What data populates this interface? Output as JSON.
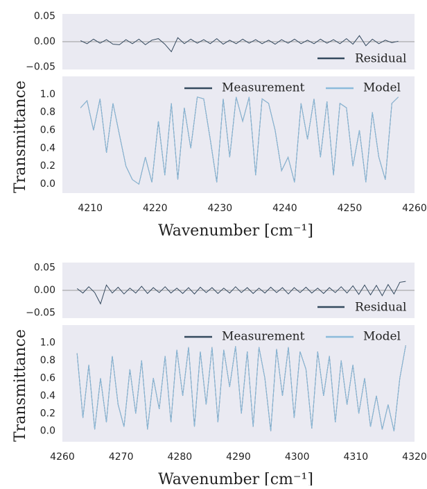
{
  "chart_data": [
    {
      "type": "line",
      "x": [
        4208.5,
        4209.5,
        4210.5,
        4211.5,
        4212.5,
        4213.5,
        4214.5,
        4215.5,
        4216.5,
        4217.5,
        4218.5,
        4219.5,
        4220.5,
        4221.5,
        4222.5,
        4223.5,
        4224.5,
        4225.5,
        4226.5,
        4227.5,
        4228.5,
        4229.5,
        4230.5,
        4231.5,
        4232.5,
        4233.5,
        4234.5,
        4235.5,
        4236.5,
        4237.5,
        4238.5,
        4239.5,
        4240.5,
        4241.5,
        4242.5,
        4243.5,
        4244.5,
        4245.5,
        4246.5,
        4247.5,
        4248.5,
        4249.5,
        4250.5,
        4251.5,
        4252.5,
        4253.5,
        4254.5,
        4255.5,
        4256.5,
        4257.5
      ],
      "series": [
        {
          "name": "Residual",
          "color": "#34495e",
          "values": [
            0.002,
            -0.004,
            0.005,
            -0.003,
            0.004,
            -0.005,
            -0.006,
            0.004,
            -0.004,
            0.005,
            -0.006,
            0.003,
            0.006,
            -0.005,
            -0.02,
            0.008,
            -0.004,
            0.005,
            -0.003,
            0.004,
            -0.004,
            0.006,
            -0.005,
            0.003,
            -0.004,
            0.005,
            -0.003,
            0.004,
            -0.004,
            0.003,
            -0.005,
            0.004,
            -0.003,
            0.005,
            -0.004,
            0.003,
            -0.004,
            0.005,
            -0.003,
            0.004,
            -0.004,
            0.006,
            -0.005,
            0.012,
            -0.008,
            0.005,
            -0.004,
            0.003,
            -0.002,
            0.001
          ]
        }
      ],
      "ylim": [
        -0.055,
        0.055
      ],
      "xlim": [
        4205.7,
        4260
      ],
      "yticks": [
        {
          "value": 0.05,
          "label": "0.05"
        },
        {
          "value": 0,
          "label": "0.00"
        },
        {
          "value": -0.05,
          "label": "−0.05"
        }
      ],
      "legend": "lower right"
    },
    {
      "type": "line",
      "x": [
        4208.5,
        4209.5,
        4210.5,
        4211.5,
        4212.5,
        4213.5,
        4214.5,
        4215.5,
        4216.5,
        4217.5,
        4218.5,
        4219.5,
        4220.5,
        4221.5,
        4222.5,
        4223.5,
        4224.5,
        4225.5,
        4226.5,
        4227.5,
        4228.5,
        4229.5,
        4230.5,
        4231.5,
        4232.5,
        4233.5,
        4234.5,
        4235.5,
        4236.5,
        4237.5,
        4238.5,
        4239.5,
        4240.5,
        4241.5,
        4242.5,
        4243.5,
        4244.5,
        4245.5,
        4246.5,
        4247.5,
        4248.5,
        4249.5,
        4250.5,
        4251.5,
        4252.5,
        4253.5,
        4254.5,
        4255.5,
        4256.5,
        4257.5
      ],
      "series": [
        {
          "name": "Measurement",
          "color": "#34495e",
          "values": [
            0.85,
            0.93,
            0.6,
            0.95,
            0.35,
            0.9,
            0.55,
            0.2,
            0.05,
            0.0,
            0.3,
            0.02,
            0.7,
            0.1,
            0.9,
            0.05,
            0.85,
            0.4,
            0.97,
            0.95,
            0.5,
            0.02,
            0.95,
            0.3,
            0.97,
            0.7,
            0.97,
            0.1,
            0.95,
            0.9,
            0.6,
            0.15,
            0.3,
            0.02,
            0.9,
            0.5,
            0.95,
            0.3,
            0.92,
            0.1,
            0.9,
            0.85,
            0.2,
            0.6,
            0.02,
            0.8,
            0.3,
            0.05,
            0.9,
            0.97
          ]
        },
        {
          "name": "Model",
          "color": "#8bbbdb",
          "values": [
            0.85,
            0.93,
            0.6,
            0.95,
            0.35,
            0.9,
            0.55,
            0.2,
            0.05,
            0.0,
            0.3,
            0.02,
            0.7,
            0.1,
            0.9,
            0.05,
            0.85,
            0.4,
            0.97,
            0.95,
            0.5,
            0.02,
            0.95,
            0.3,
            0.97,
            0.7,
            0.97,
            0.1,
            0.95,
            0.9,
            0.6,
            0.15,
            0.3,
            0.02,
            0.9,
            0.5,
            0.95,
            0.3,
            0.92,
            0.1,
            0.9,
            0.85,
            0.2,
            0.6,
            0.02,
            0.8,
            0.3,
            0.05,
            0.9,
            0.97
          ]
        }
      ],
      "ylim": [
        -0.1,
        1.2
      ],
      "xlim": [
        4205.7,
        4260
      ],
      "yticks": [
        {
          "value": 0,
          "label": "0.0"
        },
        0.2,
        0.4,
        0.6,
        0.8,
        {
          "value": 1,
          "label": "1.0"
        }
      ],
      "xticks": [
        4210,
        4220,
        4230,
        4240,
        4250,
        4260
      ],
      "ylabel": "Transmittance",
      "xlabel": "Wavenumber [cm⁻¹]",
      "legend": "upper"
    },
    {
      "type": "line",
      "x": [
        4262.5,
        4263.5,
        4264.5,
        4265.5,
        4266.5,
        4267.5,
        4268.5,
        4269.5,
        4270.5,
        4271.5,
        4272.5,
        4273.5,
        4274.5,
        4275.5,
        4276.5,
        4277.5,
        4278.5,
        4279.5,
        4280.5,
        4281.5,
        4282.5,
        4283.5,
        4284.5,
        4285.5,
        4286.5,
        4287.5,
        4288.5,
        4289.5,
        4290.5,
        4291.5,
        4292.5,
        4293.5,
        4294.5,
        4295.5,
        4296.5,
        4297.5,
        4298.5,
        4299.5,
        4300.5,
        4301.5,
        4302.5,
        4303.5,
        4304.5,
        4305.5,
        4306.5,
        4307.5,
        4308.5,
        4309.5,
        4310.5,
        4311.5,
        4312.5,
        4313.5,
        4314.5,
        4315.5,
        4316.5,
        4317.5,
        4318.5
      ],
      "series": [
        {
          "name": "Residual",
          "color": "#34495e",
          "values": [
            0.004,
            -0.006,
            0.008,
            -0.005,
            -0.03,
            0.012,
            -0.006,
            0.007,
            -0.008,
            0.005,
            -0.006,
            0.009,
            -0.007,
            0.006,
            -0.005,
            0.008,
            -0.006,
            0.005,
            -0.007,
            0.006,
            -0.008,
            0.007,
            -0.005,
            0.006,
            -0.007,
            0.005,
            -0.006,
            0.008,
            -0.005,
            0.006,
            -0.007,
            0.005,
            -0.006,
            0.007,
            -0.005,
            0.006,
            -0.008,
            0.006,
            -0.005,
            0.007,
            -0.006,
            0.005,
            -0.007,
            0.006,
            -0.005,
            0.008,
            -0.006,
            0.01,
            -0.009,
            0.012,
            -0.01,
            0.011,
            -0.012,
            0.013,
            -0.008,
            0.018,
            0.02
          ]
        }
      ],
      "ylim": [
        -0.062,
        0.062
      ],
      "xlim": [
        4260,
        4320
      ],
      "yticks": [
        {
          "value": 0.05,
          "label": "0.05"
        },
        {
          "value": 0,
          "label": "0.00"
        },
        {
          "value": -0.05,
          "label": "−0.05"
        }
      ],
      "legend": "lower right"
    },
    {
      "type": "line",
      "x": [
        4262.5,
        4263.5,
        4264.5,
        4265.5,
        4266.5,
        4267.5,
        4268.5,
        4269.5,
        4270.5,
        4271.5,
        4272.5,
        4273.5,
        4274.5,
        4275.5,
        4276.5,
        4277.5,
        4278.5,
        4279.5,
        4280.5,
        4281.5,
        4282.5,
        4283.5,
        4284.5,
        4285.5,
        4286.5,
        4287.5,
        4288.5,
        4289.5,
        4290.5,
        4291.5,
        4292.5,
        4293.5,
        4294.5,
        4295.5,
        4296.5,
        4297.5,
        4298.5,
        4299.5,
        4300.5,
        4301.5,
        4302.5,
        4303.5,
        4304.5,
        4305.5,
        4306.5,
        4307.5,
        4308.5,
        4309.5,
        4310.5,
        4311.5,
        4312.5,
        4313.5,
        4314.5,
        4315.5,
        4316.5,
        4317.5,
        4318.5
      ],
      "series": [
        {
          "name": "Measurement",
          "color": "#34495e",
          "values": [
            0.88,
            0.15,
            0.75,
            0.02,
            0.6,
            0.1,
            0.85,
            0.3,
            0.05,
            0.7,
            0.2,
            0.8,
            0.02,
            0.6,
            0.25,
            0.85,
            0.1,
            0.92,
            0.4,
            0.95,
            0.05,
            0.9,
            0.3,
            0.95,
            0.1,
            0.92,
            0.5,
            0.96,
            0.2,
            0.9,
            0.05,
            0.95,
            0.6,
            0.0,
            0.93,
            0.4,
            0.95,
            0.15,
            0.9,
            0.7,
            0.03,
            0.9,
            0.4,
            0.85,
            0.1,
            0.8,
            0.3,
            0.75,
            0.2,
            0.6,
            0.05,
            0.4,
            0.02,
            0.3,
            0.0,
            0.6,
            0.97
          ]
        },
        {
          "name": "Model",
          "color": "#8bbbdb",
          "values": [
            0.88,
            0.15,
            0.75,
            0.02,
            0.6,
            0.1,
            0.85,
            0.3,
            0.05,
            0.7,
            0.2,
            0.8,
            0.02,
            0.6,
            0.25,
            0.85,
            0.1,
            0.92,
            0.4,
            0.95,
            0.05,
            0.9,
            0.3,
            0.95,
            0.1,
            0.92,
            0.5,
            0.96,
            0.2,
            0.9,
            0.05,
            0.95,
            0.6,
            0.0,
            0.93,
            0.4,
            0.95,
            0.15,
            0.9,
            0.7,
            0.03,
            0.9,
            0.4,
            0.85,
            0.1,
            0.8,
            0.3,
            0.75,
            0.2,
            0.6,
            0.05,
            0.4,
            0.02,
            0.3,
            0.0,
            0.6,
            0.97
          ]
        }
      ],
      "ylim": [
        -0.12,
        1.2
      ],
      "xlim": [
        4260,
        4320
      ],
      "yticks": [
        {
          "value": 0,
          "label": "0.0"
        },
        0.2,
        0.4,
        0.6,
        0.8,
        {
          "value": 1,
          "label": "1.0"
        }
      ],
      "xticks": [
        4260,
        4270,
        4280,
        4290,
        4300,
        4310,
        4320
      ],
      "ylabel": "Transmittance",
      "xlabel": "Wavenumber [cm⁻¹]",
      "legend": "upper"
    }
  ]
}
